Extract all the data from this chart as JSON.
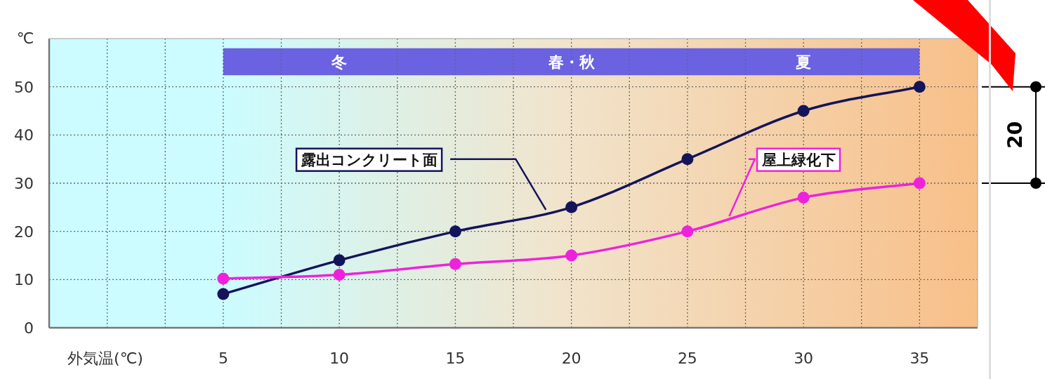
{
  "chart_data": {
    "type": "line",
    "xlabel": "外気温(℃)",
    "ylabel": "℃",
    "x": [
      5,
      10,
      15,
      20,
      25,
      30,
      35
    ],
    "series": [
      {
        "name": "露出コンクリート面",
        "color": "#14145a",
        "values": [
          7,
          14,
          20,
          25,
          35,
          45,
          50
        ]
      },
      {
        "name": "屋上緑化下",
        "color": "#ee22dd",
        "values": [
          10.2,
          11,
          13.2,
          15,
          20,
          27,
          30
        ]
      }
    ],
    "xlim": [
      -2.5,
      37.5
    ],
    "ylim": [
      0,
      60
    ],
    "xticks": [
      {
        "value": 0,
        "label": null
      },
      {
        "value": 2.5,
        "label": null
      },
      5,
      {
        "value": 7.5,
        "label": null
      },
      10,
      {
        "value": 12.5,
        "label": null
      },
      15,
      {
        "value": 17.5,
        "label": null
      },
      20,
      {
        "value": 22.5,
        "label": null
      },
      25,
      {
        "value": 27.5,
        "label": null
      },
      30,
      {
        "value": 32.5,
        "label": null
      },
      35
    ],
    "yticks": [
      0,
      10,
      20,
      30,
      40,
      50
    ],
    "grid": true,
    "marker": "circle",
    "line_style": "solid",
    "annotations": [
      "冬",
      "春・秋",
      "夏",
      "20"
    ]
  }
}
